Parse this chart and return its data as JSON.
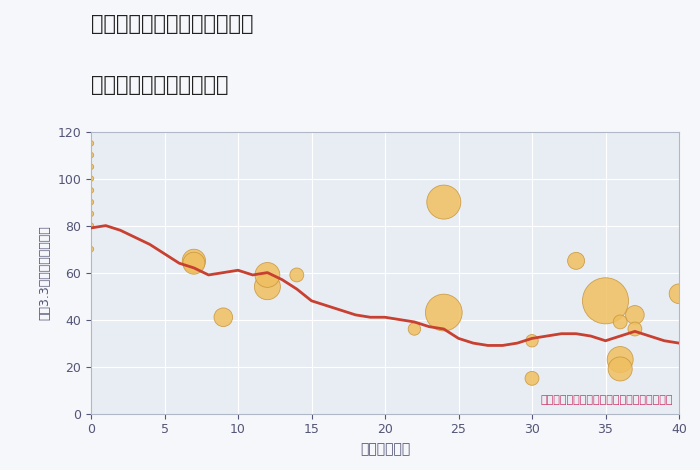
{
  "title_line1": "奈良県生駒郡斑鳩町高安西の",
  "title_line2": "築年数別中古戸建て価格",
  "xlabel": "築年数（年）",
  "ylabel": "坪（3.3㎡）単価（万円）",
  "annotation": "円の大きさは、取引のあった物件面積を示す",
  "fig_bg_color": "#f5f7fa",
  "plot_bg_color": "#e8edf4",
  "scatter_color": "#f0c060",
  "scatter_edge_color": "#c8953a",
  "line_color": "#c84030",
  "grid_color": "#ffffff",
  "title_color": "#222222",
  "annotation_color": "#cc3366",
  "axis_tick_color": "#555577",
  "xlim": [
    0,
    40
  ],
  "ylim": [
    0,
    120
  ],
  "xticks": [
    0,
    5,
    10,
    15,
    20,
    25,
    30,
    35,
    40
  ],
  "yticks": [
    0,
    20,
    40,
    60,
    80,
    100,
    120
  ],
  "scatter_x": [
    0,
    0,
    0,
    0,
    0,
    0,
    0,
    0,
    0,
    7,
    7,
    9,
    12,
    12,
    14,
    22,
    24,
    24,
    30,
    30,
    33,
    35,
    36,
    36,
    36,
    37,
    37,
    40
  ],
  "scatter_y": [
    115,
    110,
    105,
    100,
    95,
    90,
    85,
    80,
    70,
    65,
    64,
    41,
    54,
    59,
    59,
    36,
    90,
    43,
    15,
    31,
    65,
    48,
    39,
    23,
    19,
    42,
    36,
    51
  ],
  "scatter_size": [
    15,
    15,
    15,
    15,
    15,
    15,
    15,
    15,
    15,
    280,
    250,
    180,
    350,
    320,
    100,
    80,
    600,
    700,
    100,
    80,
    150,
    1100,
    100,
    350,
    300,
    180,
    100,
    200
  ],
  "line_x": [
    0,
    1,
    2,
    3,
    4,
    5,
    6,
    7,
    8,
    9,
    10,
    11,
    12,
    13,
    14,
    15,
    16,
    17,
    18,
    19,
    20,
    21,
    22,
    23,
    24,
    25,
    26,
    27,
    28,
    29,
    30,
    31,
    32,
    33,
    34,
    35,
    36,
    37,
    38,
    39,
    40
  ],
  "line_y": [
    79,
    80,
    78,
    75,
    72,
    68,
    64,
    62,
    59,
    60,
    61,
    59,
    60,
    57,
    53,
    48,
    46,
    44,
    42,
    41,
    41,
    40,
    39,
    37,
    36,
    32,
    30,
    29,
    29,
    30,
    32,
    33,
    34,
    34,
    33,
    31,
    33,
    35,
    33,
    31,
    30
  ]
}
